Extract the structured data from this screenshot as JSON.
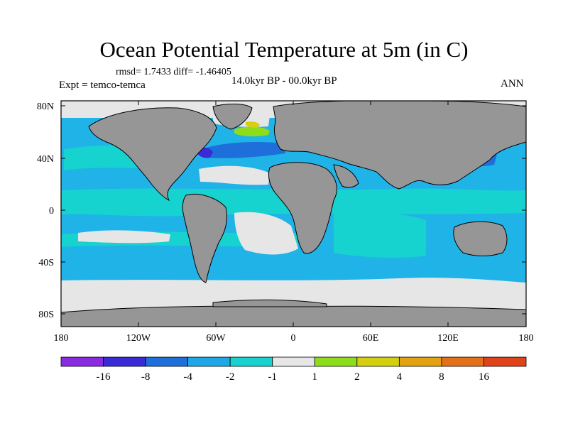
{
  "title": "Ocean Potential Temperature at 5m (in C)",
  "stats_text": "rmsd= 1.7433 diff= -1.46405",
  "experiment": "Expt = temco-temca",
  "period": "14.0kyr BP - 00.0kyr BP",
  "season": "ANN",
  "lat_ticks": [
    "80N",
    "40N",
    "0",
    "40S",
    "80S"
  ],
  "lon_ticks": [
    "180",
    "120W",
    "60W",
    "0",
    "60E",
    "120E",
    "180"
  ],
  "colorbar": {
    "labels": [
      "-16",
      "-8",
      "-4",
      "-2",
      "-1",
      "1",
      "2",
      "4",
      "8",
      "16"
    ],
    "colors": [
      "#8a2be2",
      "#3a2bd8",
      "#1e6fd9",
      "#1fa8e8",
      "#16d3cf",
      "#e6e6e6",
      "#8edc1c",
      "#d6cf10",
      "#e3a212",
      "#e4701a",
      "#e0431a"
    ]
  },
  "colors": {
    "land": "#969696",
    "coast": "#000000",
    "ocean_main": "#1fb3e8",
    "ocean_light": "#16d3cf",
    "near_zero": "#e6e6e6",
    "cold": "#1e6fd9",
    "very_cold": "#3a2bd8",
    "warm": "#8edc1c"
  }
}
